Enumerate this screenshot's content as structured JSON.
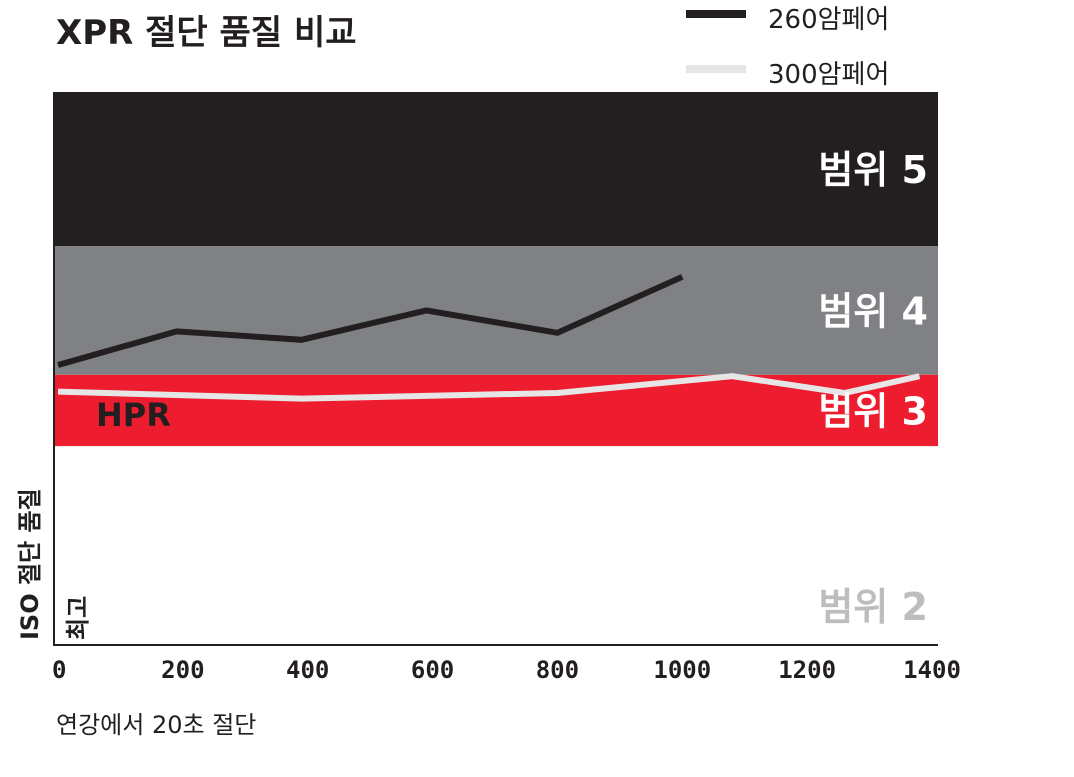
{
  "chart_data": {
    "type": "line",
    "title": "XPR 절단 품질 비교",
    "xlabel": "연강에서 20초 절단",
    "ylabel": "ISO 절단 품질",
    "ylabel_best": "최고",
    "xlim": [
      0,
      1470
    ],
    "ylim": [
      1.6,
      5.55
    ],
    "x_ticks": [
      "0",
      "200",
      "400",
      "600",
      "800",
      "1000",
      "1200",
      "1400"
    ],
    "bands": [
      {
        "label": "범위 5",
        "from": 4.45,
        "to": 5.55,
        "color": "#231f20",
        "text_color": "#ffffff"
      },
      {
        "label": "범위 4",
        "from": 3.53,
        "to": 4.45,
        "color": "#808184",
        "text_color": "#ffffff"
      },
      {
        "label": "범위 3",
        "from": 3.02,
        "to": 3.53,
        "color": "#ed1c2e",
        "text_color": "#ffffff"
      },
      {
        "label": "범위 2",
        "from": 1.6,
        "to": 3.02,
        "color": "#ffffff",
        "text_color": "#bdbdbd"
      }
    ],
    "series": [
      {
        "name": "260암페어",
        "label": "HPR",
        "color": "#231f20",
        "x": [
          0,
          190,
          390,
          590,
          800,
          1000
        ],
        "y": [
          3.6,
          3.84,
          3.78,
          3.99,
          3.83,
          4.23
        ]
      },
      {
        "name": "300암페어",
        "label": "XPR",
        "color": "#e6e6e6",
        "x": [
          0,
          390,
          800,
          1080,
          1260,
          1380
        ],
        "y": [
          3.41,
          3.36,
          3.4,
          3.52,
          3.4,
          3.52
        ]
      }
    ],
    "legend_position": "top-right",
    "grid": false
  }
}
